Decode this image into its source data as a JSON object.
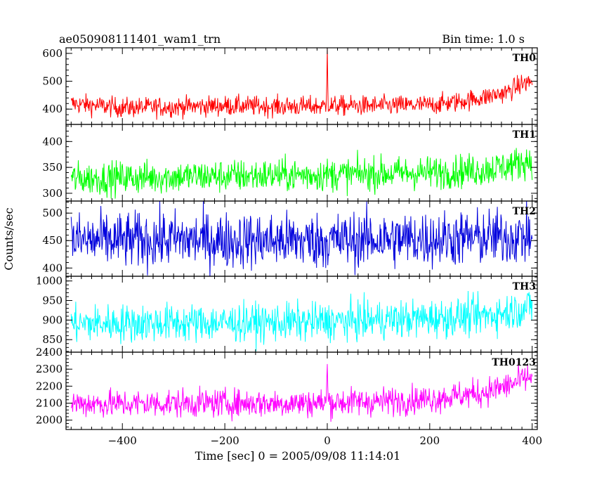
{
  "header": {
    "left_title": "ae050908111401_wam1_trn",
    "right_title": "Bin time: 1.0 s"
  },
  "chart_data": {
    "type": "line",
    "xlabel": "Time [sec] 0 = 2005/09/08 11:14:01",
    "ylabel": "Counts/sec",
    "xlim": [
      -510,
      410
    ],
    "x_ticks": [
      -400,
      -200,
      0,
      200,
      400
    ],
    "x_tick_labels": [
      "−400",
      "−200",
      "0",
      "200",
      "400"
    ],
    "x_range": [
      -500,
      400
    ],
    "bin_time_s": 1.0,
    "grid": false,
    "panels": [
      {
        "name": "TH0",
        "color": "#ff0000",
        "ylim": [
          345,
          620
        ],
        "y_ticks": [
          400,
          500,
          600
        ],
        "series": [
          {
            "x": -500,
            "y": 420
          },
          {
            "x": -400,
            "y": 405
          },
          {
            "x": -300,
            "y": 408
          },
          {
            "x": -200,
            "y": 412
          },
          {
            "x": -100,
            "y": 410
          },
          {
            "x": -2,
            "y": 410
          },
          {
            "x": 0,
            "y": 620
          },
          {
            "x": 2,
            "y": 412
          },
          {
            "x": 100,
            "y": 412
          },
          {
            "x": 200,
            "y": 415
          },
          {
            "x": 250,
            "y": 425
          },
          {
            "x": 300,
            "y": 440
          },
          {
            "x": 350,
            "y": 460
          },
          {
            "x": 380,
            "y": 490
          },
          {
            "x": 400,
            "y": 500
          }
        ],
        "noise_amplitude": 28
      },
      {
        "name": "TH1",
        "color": "#00ff00",
        "ylim": [
          285,
          433
        ],
        "y_ticks": [
          300,
          350,
          400
        ],
        "series": [
          {
            "x": -500,
            "y": 328
          },
          {
            "x": -400,
            "y": 330
          },
          {
            "x": -300,
            "y": 332
          },
          {
            "x": -200,
            "y": 333
          },
          {
            "x": -100,
            "y": 335
          },
          {
            "x": 0,
            "y": 336
          },
          {
            "x": 100,
            "y": 338
          },
          {
            "x": 200,
            "y": 340
          },
          {
            "x": 300,
            "y": 345
          },
          {
            "x": 350,
            "y": 352
          },
          {
            "x": 400,
            "y": 365
          }
        ],
        "noise_amplitude": 25
      },
      {
        "name": "TH2",
        "color": "#0000dd",
        "ylim": [
          385,
          522
        ],
        "y_ticks": [
          400,
          450,
          500
        ],
        "series": [
          {
            "x": -500,
            "y": 450
          },
          {
            "x": -400,
            "y": 450
          },
          {
            "x": -300,
            "y": 452
          },
          {
            "x": -200,
            "y": 450
          },
          {
            "x": -100,
            "y": 450
          },
          {
            "x": 0,
            "y": 450
          },
          {
            "x": 100,
            "y": 452
          },
          {
            "x": 200,
            "y": 453
          },
          {
            "x": 300,
            "y": 455
          },
          {
            "x": 400,
            "y": 458
          }
        ],
        "noise_amplitude": 40
      },
      {
        "name": "TH3",
        "color": "#00ffff",
        "ylim": [
          818,
          1012
        ],
        "y_ticks": [
          850,
          900,
          950,
          1000
        ],
        "series": [
          {
            "x": -500,
            "y": 890
          },
          {
            "x": -400,
            "y": 892
          },
          {
            "x": -300,
            "y": 893
          },
          {
            "x": -200,
            "y": 893
          },
          {
            "x": -100,
            "y": 894
          },
          {
            "x": 0,
            "y": 896
          },
          {
            "x": 100,
            "y": 900
          },
          {
            "x": 200,
            "y": 905
          },
          {
            "x": 300,
            "y": 910
          },
          {
            "x": 350,
            "y": 920
          },
          {
            "x": 400,
            "y": 935
          }
        ],
        "noise_amplitude": 38
      },
      {
        "name": "TH0123",
        "color": "#ff00ff",
        "ylim": [
          1945,
          2400
        ],
        "y_ticks": [
          2000,
          2100,
          2200,
          2300,
          2400
        ],
        "series": [
          {
            "x": -500,
            "y": 2100
          },
          {
            "x": -400,
            "y": 2095
          },
          {
            "x": -300,
            "y": 2100
          },
          {
            "x": -200,
            "y": 2100
          },
          {
            "x": -100,
            "y": 2100
          },
          {
            "x": -2,
            "y": 2102
          },
          {
            "x": 0,
            "y": 2330
          },
          {
            "x": 2,
            "y": 2105
          },
          {
            "x": 100,
            "y": 2110
          },
          {
            "x": 200,
            "y": 2125
          },
          {
            "x": 300,
            "y": 2160
          },
          {
            "x": 350,
            "y": 2200
          },
          {
            "x": 400,
            "y": 2260
          }
        ],
        "noise_amplitude": 65
      }
    ]
  }
}
